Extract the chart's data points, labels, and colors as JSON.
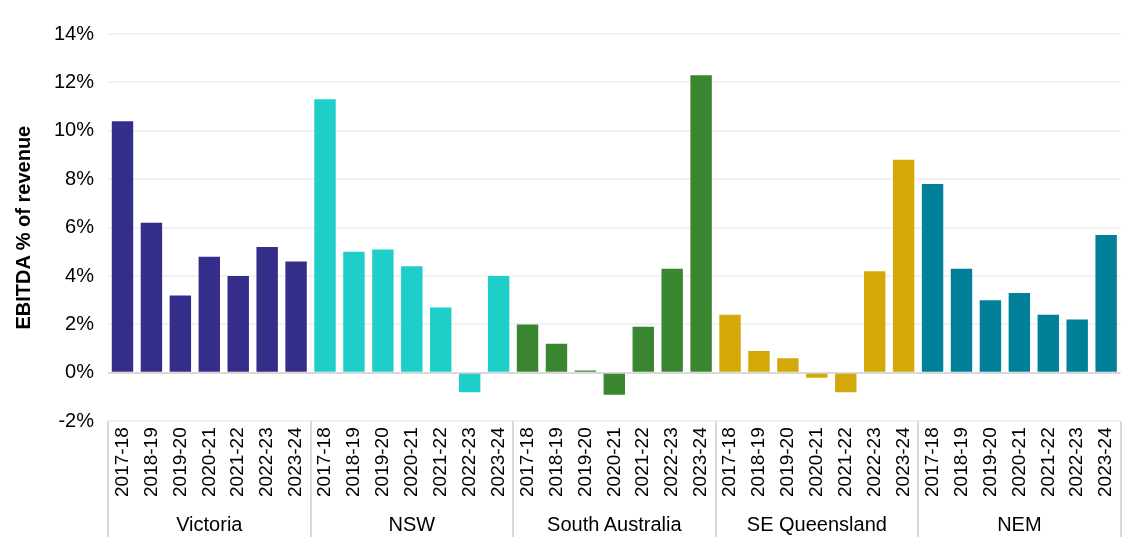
{
  "chart_data": {
    "type": "bar",
    "ylabel": "EBITDA % of revenue",
    "categories": [
      "2017-18",
      "2018-19",
      "2019-20",
      "2020-21",
      "2021-22",
      "2022-23",
      "2023-24",
      "2017-18",
      "2018-19",
      "2019-20",
      "2020-21",
      "2021-22",
      "2022-23",
      "2023-24",
      "2017-18",
      "2018-19",
      "2019-20",
      "2020-21",
      "2021-22",
      "2022-23",
      "2023-24",
      "2017-18",
      "2018-19",
      "2019-20",
      "2020-21",
      "2021-22",
      "2022-23",
      "2023-24",
      "2017-18",
      "2018-19",
      "2019-20",
      "2020-21",
      "2021-22",
      "2022-23",
      "2023-24"
    ],
    "values": [
      10.4,
      6.2,
      3.2,
      4.8,
      4.0,
      5.2,
      4.6,
      11.3,
      5.0,
      5.1,
      4.4,
      2.7,
      -0.8,
      4.0,
      2.0,
      1.2,
      0.1,
      -0.9,
      1.9,
      4.3,
      12.3,
      2.4,
      0.9,
      0.6,
      -0.2,
      -0.8,
      4.2,
      8.8,
      7.8,
      4.3,
      3.0,
      3.3,
      2.4,
      2.2,
      5.7
    ],
    "colors": [
      "#352d8a",
      "#352d8a",
      "#352d8a",
      "#352d8a",
      "#352d8a",
      "#352d8a",
      "#352d8a",
      "#1ecfc9",
      "#1ecfc9",
      "#1ecfc9",
      "#1ecfc9",
      "#1ecfc9",
      "#1ecfc9",
      "#1ecfc9",
      "#3a852f",
      "#3a852f",
      "#3a852f",
      "#3a852f",
      "#3a852f",
      "#3a852f",
      "#3a852f",
      "#d5a80a",
      "#d5a80a",
      "#d5a80a",
      "#d5a80a",
      "#d5a80a",
      "#d5a80a",
      "#d5a80a",
      "#01809a",
      "#01809a",
      "#01809a",
      "#01809a",
      "#01809a",
      "#01809a",
      "#01809a"
    ],
    "annotations": [
      "Victoria",
      "NSW",
      "South Australia",
      "SE Queensland",
      "NEM"
    ],
    "ylim": [
      -2,
      14
    ],
    "yticks": [
      {
        "value": -2,
        "label": "-2%"
      },
      {
        "value": 0,
        "label": "0%"
      },
      {
        "value": 2,
        "label": "2%"
      },
      {
        "value": 4,
        "label": "4%"
      },
      {
        "value": 6,
        "label": "6%"
      },
      {
        "value": 8,
        "label": "8%"
      },
      {
        "value": 10,
        "label": "10%"
      },
      {
        "value": 12,
        "label": "12%"
      },
      {
        "value": 14,
        "label": "14%"
      }
    ],
    "grid": "y",
    "legend": false
  }
}
